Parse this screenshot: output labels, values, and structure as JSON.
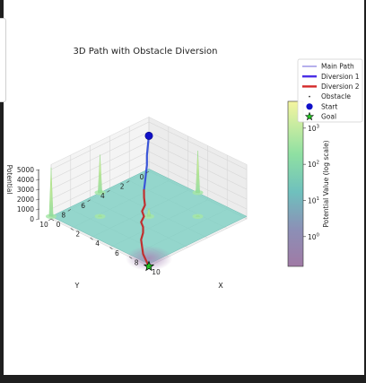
{
  "chart_data": {
    "type": "surface3d",
    "title": "3D Path with Obstacle Diversion",
    "xlabel": "X",
    "ylabel": "Y",
    "zlabel": "Potential",
    "x_ticks": [
      "0",
      "2",
      "4",
      "6",
      "8",
      "10"
    ],
    "y_ticks": [
      "0",
      "2",
      "4",
      "6",
      "8",
      "10"
    ],
    "z_ticks": [
      "0",
      "1000",
      "2000",
      "3000",
      "4000",
      "5000"
    ],
    "xlim": [
      0,
      10
    ],
    "ylim": [
      0,
      10
    ],
    "zlim": [
      0,
      5500
    ],
    "grid": true,
    "legend_position": "top-right",
    "legend": [
      {
        "label": "Main Path",
        "color": "#7b6fdc",
        "kind": "line-thin"
      },
      {
        "label": "Diversion 1",
        "color": "#4a2ee6",
        "kind": "line"
      },
      {
        "label": "Diversion 2",
        "color": "#d42a2a",
        "kind": "line"
      },
      {
        "label": "Obstacle",
        "color": "#333333",
        "kind": "dot"
      },
      {
        "label": "Start",
        "color": "#1010c8",
        "kind": "circle"
      },
      {
        "label": "Goal",
        "color": "#22cc22",
        "kind": "star"
      }
    ],
    "colorbar": {
      "label": "Potential Value (log scale)",
      "scale": "log",
      "ticks": [
        {
          "base": "10",
          "exp": "0",
          "value": 1
        },
        {
          "base": "10",
          "exp": "1",
          "value": 10
        },
        {
          "base": "10",
          "exp": "2",
          "value": 100
        },
        {
          "base": "10",
          "exp": "3",
          "value": 1000
        }
      ],
      "range": [
        0.15,
        5500
      ]
    },
    "obstacles": [
      {
        "x": 0,
        "y": 10,
        "peak": 5200
      },
      {
        "x": 0,
        "y": 5,
        "peak": 4100
      },
      {
        "x": 5,
        "y": 0,
        "peak": 4500
      },
      {
        "x": 5,
        "y": 5,
        "peak": 1100
      },
      {
        "x": 2.5,
        "y": 7.5,
        "peak": 400
      },
      {
        "x": 7.5,
        "y": 2.5,
        "peak": 350
      }
    ],
    "start": {
      "x": 0,
      "y": 0,
      "z": 3600
    },
    "goal": {
      "x": 10,
      "y": 10,
      "z": 0
    },
    "paths": [
      {
        "name": "Diversion 1",
        "color": "#3a55d8",
        "points": [
          [
            0,
            0,
            3600
          ],
          [
            0.2,
            0.3,
            2900
          ],
          [
            0.5,
            0.7,
            2200
          ],
          [
            0.9,
            1.1,
            1600
          ],
          [
            1.3,
            1.6,
            1150
          ],
          [
            1.8,
            2.2,
            800
          ],
          [
            2.3,
            2.8,
            550
          ]
        ]
      },
      {
        "name": "Diversion 2",
        "color": "#c03030",
        "points": [
          [
            2.3,
            2.8,
            550
          ],
          [
            2.9,
            3.4,
            350
          ],
          [
            3.6,
            4.0,
            230
          ],
          [
            4.0,
            4.7,
            150
          ],
          [
            4.6,
            5.1,
            100
          ],
          [
            5.0,
            5.8,
            60
          ],
          [
            5.6,
            6.2,
            40
          ],
          [
            6.2,
            6.8,
            25
          ],
          [
            6.8,
            7.6,
            15
          ],
          [
            7.6,
            8.3,
            8
          ],
          [
            8.4,
            9.0,
            4
          ],
          [
            9.2,
            9.5,
            2
          ],
          [
            10,
            10,
            0
          ]
        ]
      }
    ]
  }
}
